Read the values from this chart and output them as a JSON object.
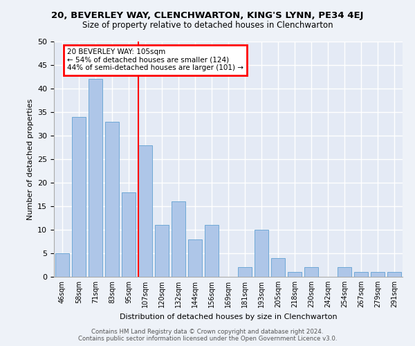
{
  "title1": "20, BEVERLEY WAY, CLENCHWARTON, KING'S LYNN, PE34 4EJ",
  "title2": "Size of property relative to detached houses in Clenchwarton",
  "xlabel": "Distribution of detached houses by size in Clenchwarton",
  "ylabel": "Number of detached properties",
  "footer": "Contains HM Land Registry data © Crown copyright and database right 2024.\nContains public sector information licensed under the Open Government Licence v3.0.",
  "categories": [
    "46sqm",
    "58sqm",
    "71sqm",
    "83sqm",
    "95sqm",
    "107sqm",
    "120sqm",
    "132sqm",
    "144sqm",
    "156sqm",
    "169sqm",
    "181sqm",
    "193sqm",
    "205sqm",
    "218sqm",
    "230sqm",
    "242sqm",
    "254sqm",
    "267sqm",
    "279sqm",
    "291sqm"
  ],
  "values": [
    5,
    34,
    42,
    33,
    18,
    28,
    11,
    16,
    8,
    11,
    0,
    2,
    10,
    4,
    1,
    2,
    0,
    2,
    1,
    1,
    1
  ],
  "bar_color": "#aec6e8",
  "bar_edge_color": "#6fa8d6",
  "annotation_title": "20 BEVERLEY WAY: 105sqm",
  "annotation_line1": "← 54% of detached houses are smaller (124)",
  "annotation_line2": "44% of semi-detached houses are larger (101) →",
  "ylim": [
    0,
    50
  ],
  "yticks": [
    0,
    5,
    10,
    15,
    20,
    25,
    30,
    35,
    40,
    45,
    50
  ],
  "bg_color": "#eef2f8",
  "plot_bg_color": "#e4eaf5"
}
